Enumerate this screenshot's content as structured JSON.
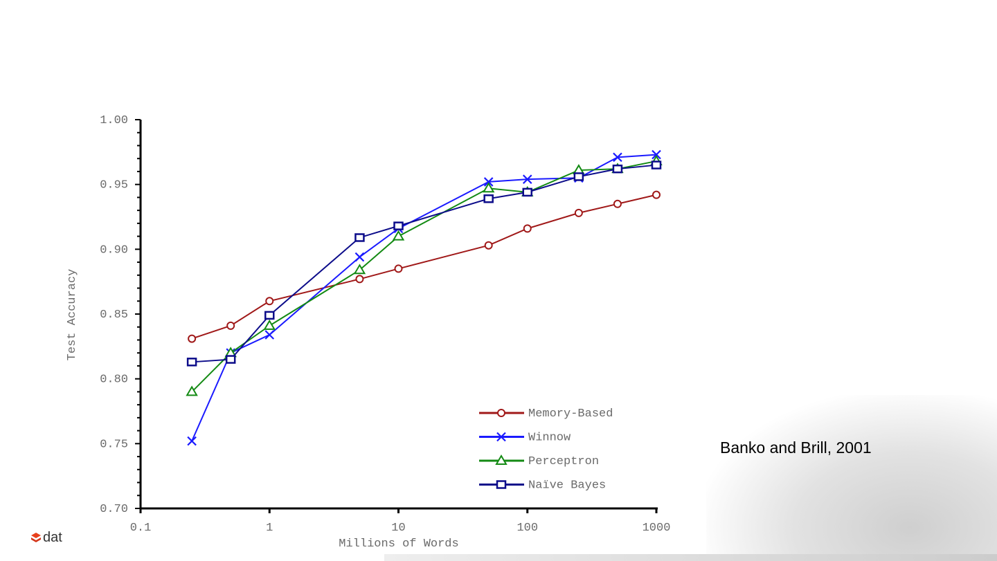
{
  "chart_data": {
    "type": "line",
    "xlabel": "Millions of Words",
    "ylabel": "Test Accuracy",
    "xscale": "log",
    "xlim": [
      0.1,
      1000
    ],
    "ylim": [
      0.7,
      1.0
    ],
    "xticks": [
      "0.1",
      "1",
      "10",
      "100",
      "1000"
    ],
    "xtick_values": [
      0.1,
      1,
      10,
      100,
      1000
    ],
    "yticks": [
      "0.70",
      "0.75",
      "0.80",
      "0.85",
      "0.90",
      "0.95",
      "1.00"
    ],
    "ytick_values": [
      0.7,
      0.75,
      0.8,
      0.85,
      0.9,
      0.95,
      1.0
    ],
    "legend_position": "bottom-right",
    "x": [
      0.25,
      0.5,
      1,
      5,
      10,
      50,
      100,
      250,
      500,
      1000
    ],
    "series": [
      {
        "name": "Memory-Based",
        "color": "#a01818",
        "marker": "circle",
        "values": [
          0.831,
          0.841,
          0.86,
          0.877,
          0.885,
          0.903,
          0.916,
          0.928,
          0.935,
          0.942
        ]
      },
      {
        "name": "Winnow",
        "color": "#1a1aff",
        "marker": "x",
        "values": [
          0.752,
          0.82,
          0.834,
          0.894,
          0.916,
          0.952,
          0.954,
          0.955,
          0.971,
          0.973
        ]
      },
      {
        "name": "Perceptron",
        "color": "#138a13",
        "marker": "triangle",
        "values": [
          0.79,
          0.82,
          0.841,
          0.884,
          0.91,
          0.947,
          0.944,
          0.961,
          0.962,
          0.968
        ]
      },
      {
        "name": "Naïve Bayes",
        "color": "#0c0c8a",
        "marker": "square",
        "values": [
          0.813,
          0.815,
          0.849,
          0.909,
          0.918,
          0.939,
          0.944,
          0.956,
          0.962,
          0.965
        ]
      }
    ]
  },
  "citation": "Banko and Brill, 2001",
  "logo_text": "dat",
  "logo_color": "#e8401c"
}
